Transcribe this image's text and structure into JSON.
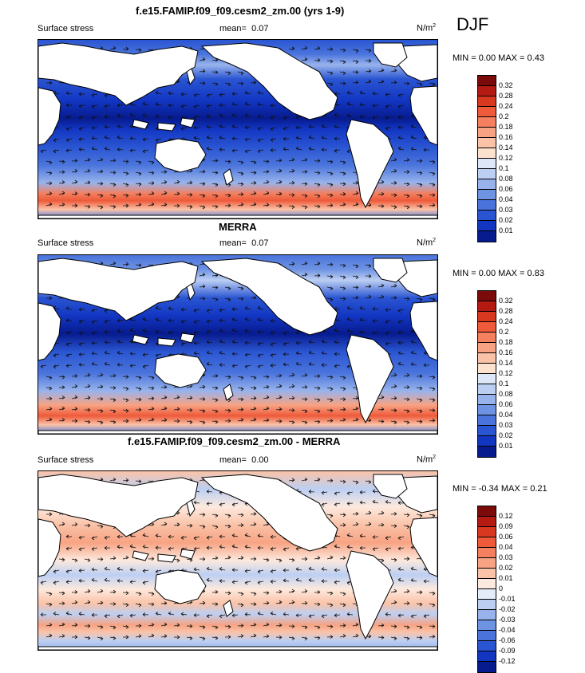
{
  "season": "DJF",
  "panels": [
    {
      "title": "f.e15.FAMIP.f09_f09.cesm2_zm.00 (yrs 1-9)",
      "left": "Surface stress",
      "mean_label": "mean=",
      "mean": "0.07",
      "units_base": "N/m",
      "units_exp": "2",
      "minmax": "MIN =   0.00 MAX =   0.43",
      "levels": [
        "0.32",
        "0.28",
        "0.24",
        "0.2",
        "0.18",
        "0.16",
        "0.14",
        "0.12",
        "0.1",
        "0.08",
        "0.06",
        "0.04",
        "0.03",
        "0.02",
        "0.01"
      ],
      "colors": [
        "#7b0b0b",
        "#b41a12",
        "#d8381f",
        "#ee5a3a",
        "#f4805f",
        "#f7a383",
        "#fac3a8",
        "#fde1cf",
        "#dde7f8",
        "#bccff3",
        "#98b3ec",
        "#6f93e3",
        "#4a74dc",
        "#2a55d2",
        "#1236c2",
        "#071b8e"
      ]
    },
    {
      "title": "MERRA",
      "left": "Surface stress",
      "mean_label": "mean=",
      "mean": "0.07",
      "units_base": "N/m",
      "units_exp": "2",
      "minmax": "MIN =   0.00 MAX =   0.83",
      "levels": [
        "0.32",
        "0.28",
        "0.24",
        "0.2",
        "0.18",
        "0.16",
        "0.14",
        "0.12",
        "0.1",
        "0.08",
        "0.06",
        "0.04",
        "0.03",
        "0.02",
        "0.01"
      ],
      "colors": [
        "#7b0b0b",
        "#b41a12",
        "#d8381f",
        "#ee5a3a",
        "#f4805f",
        "#f7a383",
        "#fac3a8",
        "#fde1cf",
        "#dde7f8",
        "#bccff3",
        "#98b3ec",
        "#6f93e3",
        "#4a74dc",
        "#2a55d2",
        "#1236c2",
        "#071b8e"
      ]
    },
    {
      "title": "f.e15.FAMIP.f09_f09.cesm2_zm.00 - MERRA",
      "left": "Surface stress",
      "mean_label": "mean=",
      "mean": "0.00",
      "units_base": "N/m",
      "units_exp": "2",
      "minmax": "MIN =  -0.34 MAX =   0.21",
      "levels": [
        "0.12",
        "0.09",
        "0.06",
        "0.04",
        "0.03",
        "0.02",
        "0.01",
        "0",
        "-0.01",
        "-0.02",
        "-0.03",
        "-0.04",
        "-0.06",
        "-0.09",
        "-0.12"
      ],
      "colors": [
        "#7b0b0b",
        "#b41a12",
        "#d8381f",
        "#ee5a3a",
        "#f4805f",
        "#f7a383",
        "#fac3a8",
        "#fde9dd",
        "#e4ecfa",
        "#bccff3",
        "#98b3ec",
        "#6f93e3",
        "#4a74dc",
        "#2a55d2",
        "#1236c2",
        "#071b8e"
      ]
    }
  ]
}
